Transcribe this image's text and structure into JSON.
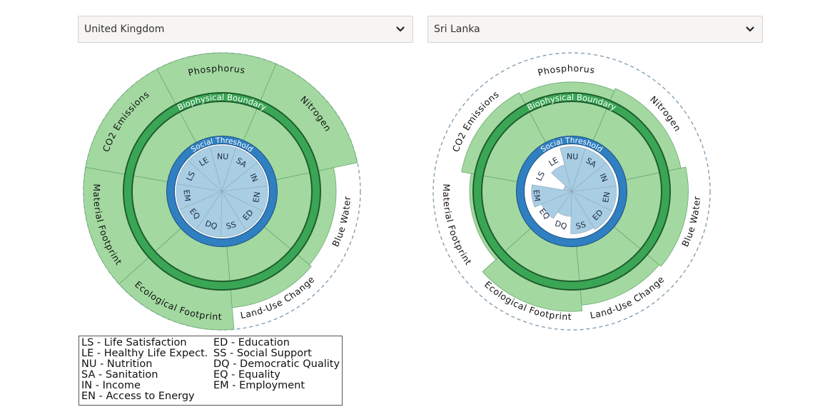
{
  "selectors": {
    "left": {
      "value": "United Kingdom",
      "icon": "chevron-down-icon"
    },
    "right": {
      "value": "Sri Lanka",
      "icon": "chevron-down-icon"
    }
  },
  "rings": {
    "biophysical_label": "Biophysical Boundary",
    "social_label": "Social Threshold"
  },
  "colors": {
    "ecological_fill": "#a3d9a0",
    "ecological_stroke": "#6aa874",
    "biophysical_ring": "#3aa655",
    "social_ring": "#2f7fc1",
    "social_fill": "#a9cde3",
    "outer_dashed": "#7d98ac"
  },
  "biophysical_labels": [
    "Phosphorus",
    "Nitrogen",
    "Blue Water",
    "Land-Use Change",
    "Ecological Footprint",
    "Material Footprint",
    "CO2 Emissions"
  ],
  "social_codes": [
    "NU",
    "SA",
    "IN",
    "EN",
    "ED",
    "SS",
    "DQ",
    "EQ",
    "EM",
    "LS",
    "LE"
  ],
  "diagrams": [
    {
      "country": "United Kingdom",
      "biophysical_levels": [
        1.0,
        1.0,
        0.5,
        0.55,
        1.0,
        1.0,
        1.0
      ],
      "social_levels": [
        1,
        1,
        1,
        1,
        1,
        1,
        1,
        1,
        1,
        1,
        1
      ]
    },
    {
      "country": "Sri Lanka",
      "biophysical_levels": [
        0.4,
        0.45,
        0.55,
        0.5,
        0.62,
        0.25,
        0.45
      ],
      "social_levels": [
        0.98,
        0.98,
        0.98,
        0.98,
        0.98,
        0.93,
        0.55,
        0.72,
        0.88,
        0.18,
        0.6
      ]
    }
  ],
  "legend": {
    "col1": [
      "LS - Life Satisfaction",
      "LE - Healthy Life Expect.",
      "NU - Nutrition",
      "SA - Sanitation",
      "IN - Income",
      "EN - Access to Energy"
    ],
    "col2": [
      "ED - Education",
      "SS - Social Support",
      "DQ - Democratic Quality",
      "EQ - Equality",
      "EM - Employment"
    ]
  }
}
